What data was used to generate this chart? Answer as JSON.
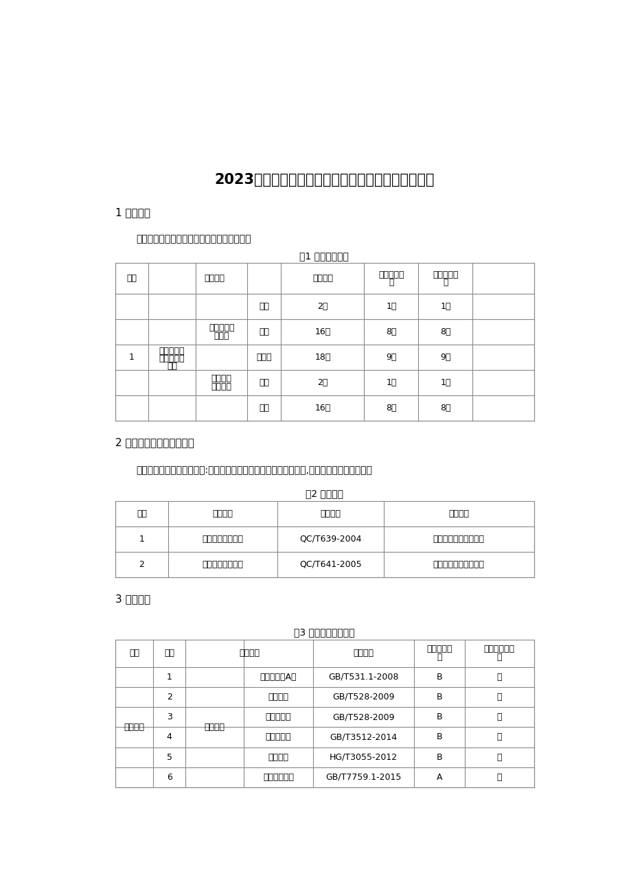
{
  "title": "2023年河北省汽车密封条产品质量监督抽查实施细则",
  "bg_color": "#ffffff",
  "section1_heading": "1 抽样方法",
  "section1_text": "以随机抽样的方式抽取检验样品和备用样品。",
  "table1_title": "表1 抽取样品数量",
  "section2_heading": "2 抽查产品名称及执行标准",
  "section2_text": "本次抽查的产品名称主要为:汽车用橡胶密封条、汽车用塑料密封条,各产品执行标准见下表。",
  "table2_title": "表2 执行标准",
  "table2_headers": [
    "序号",
    "产品名称",
    "标准编号",
    "标准名称"
  ],
  "table2_rows": [
    [
      "1",
      "汽车用橡胶密封条",
      "QC/T639-2004",
      "《汽车用橡胶密封条》"
    ],
    [
      "2",
      "汽车用塑料密封条",
      "QC/T641-2005",
      "《汽车用塑料密封条》"
    ]
  ],
  "section3_heading": "3 检验依据",
  "table3_title": "表3 汽车用橡胶密封条",
  "table3_headers_line1": [
    "分类",
    "序号",
    "检验项目",
    "检验方法",
    "重要程度分",
    "是否为环保指"
  ],
  "table3_headers_line2": [
    "",
    "",
    "",
    "",
    "级",
    "标"
  ],
  "table3_rows": [
    [
      "主要性能",
      "1",
      "胶料性能",
      "硬度（邵尔A）",
      "GB/T531.1-2008",
      "B",
      "否"
    ],
    [
      "",
      "2",
      "",
      "拉伸强度",
      "GB/T528-2009",
      "B",
      "否"
    ],
    [
      "",
      "3",
      "",
      "拉断伸长率",
      "GB/T528-2009",
      "B",
      "否"
    ],
    [
      "",
      "4",
      "",
      "热空气老化",
      "GB/T3512-2014",
      "B",
      "否"
    ],
    [
      "",
      "5",
      "",
      "表观密度",
      "HG/T3055-2012",
      "B",
      "否"
    ],
    [
      "",
      "6",
      "",
      "压缩永久变形",
      "GB/T7759.1-2015",
      "A",
      "否"
    ]
  ]
}
